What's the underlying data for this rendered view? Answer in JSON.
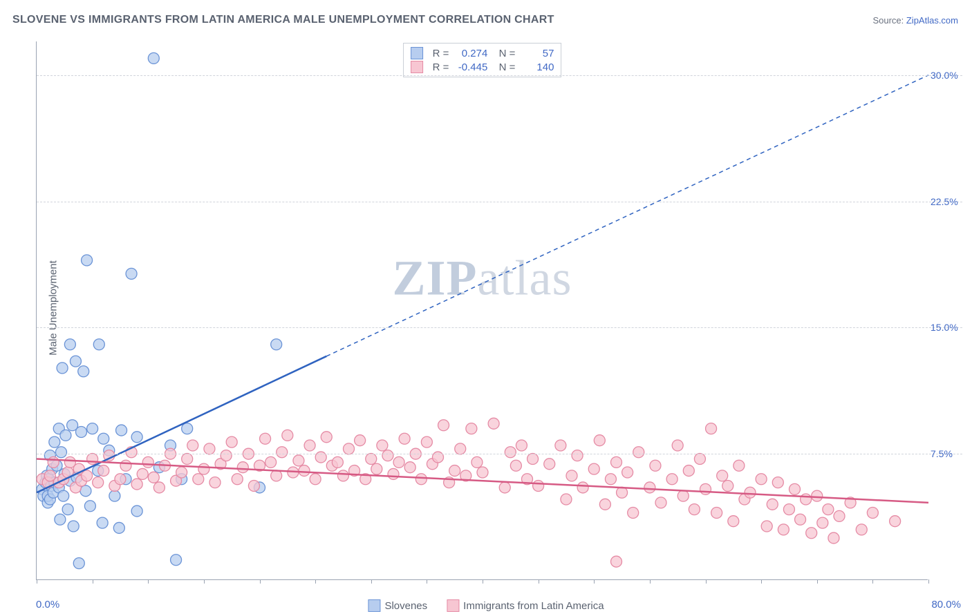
{
  "title": "SLOVENE VS IMMIGRANTS FROM LATIN AMERICA MALE UNEMPLOYMENT CORRELATION CHART",
  "source_prefix": "Source: ",
  "source_link_text": "ZipAtlas.com",
  "ylabel": "Male Unemployment",
  "watermark_bold": "ZIP",
  "watermark_rest": "atlas",
  "chart": {
    "type": "scatter-with-regression",
    "background_color": "#ffffff",
    "grid_color": "#d0d4db",
    "axis_color": "#9aa3b2",
    "label_color": "#5a6270",
    "value_color": "#4169c5",
    "xlim": [
      0,
      80
    ],
    "ylim": [
      0,
      32
    ],
    "x_tick_positions": [
      0,
      5,
      10,
      15,
      20,
      25,
      30,
      35,
      40,
      45,
      50,
      55,
      60,
      65,
      70,
      75,
      80
    ],
    "x_axis_labels": {
      "left": "0.0%",
      "right": "80.0%"
    },
    "y_gridlines": [
      7.5,
      15.0,
      22.5,
      30.0
    ],
    "y_tick_labels": [
      "7.5%",
      "15.0%",
      "22.5%",
      "30.0%"
    ],
    "marker_radius": 8,
    "marker_stroke_width": 1.3,
    "line_width": 2.5,
    "series": [
      {
        "name": "Slovenes",
        "fill": "#b7cdef",
        "stroke": "#6a93d6",
        "line_color": "#2f63c0",
        "R": "0.274",
        "N": "57",
        "regression": {
          "x1": 0,
          "y1": 5.2,
          "x2": 26,
          "y2": 13.3,
          "dash_x2": 80,
          "dash_y2": 30.0
        },
        "points": [
          [
            0.5,
            5.4
          ],
          [
            0.6,
            5.0
          ],
          [
            0.8,
            5.8
          ],
          [
            0.9,
            6.2
          ],
          [
            1.0,
            4.6
          ],
          [
            1.0,
            5.0
          ],
          [
            1.1,
            6.0
          ],
          [
            1.2,
            7.4
          ],
          [
            1.2,
            4.8
          ],
          [
            1.3,
            5.6
          ],
          [
            1.4,
            6.6
          ],
          [
            1.5,
            5.2
          ],
          [
            1.6,
            8.2
          ],
          [
            1.6,
            5.8
          ],
          [
            1.8,
            6.8
          ],
          [
            2.0,
            9.0
          ],
          [
            2.0,
            5.5
          ],
          [
            2.1,
            3.6
          ],
          [
            2.2,
            7.6
          ],
          [
            2.3,
            12.6
          ],
          [
            2.4,
            5.0
          ],
          [
            2.5,
            6.3
          ],
          [
            2.6,
            8.6
          ],
          [
            2.8,
            4.2
          ],
          [
            3.0,
            14.0
          ],
          [
            3.0,
            5.9
          ],
          [
            3.2,
            9.2
          ],
          [
            3.3,
            3.2
          ],
          [
            3.5,
            13.0
          ],
          [
            3.6,
            6.1
          ],
          [
            3.8,
            1.0
          ],
          [
            4.0,
            8.8
          ],
          [
            4.2,
            12.4
          ],
          [
            4.4,
            5.3
          ],
          [
            4.5,
            19.0
          ],
          [
            4.8,
            4.4
          ],
          [
            5.0,
            9.0
          ],
          [
            5.5,
            6.5
          ],
          [
            5.6,
            14.0
          ],
          [
            5.9,
            3.4
          ],
          [
            6.0,
            8.4
          ],
          [
            6.5,
            7.7
          ],
          [
            7.0,
            5.0
          ],
          [
            7.4,
            3.1
          ],
          [
            7.6,
            8.9
          ],
          [
            8.0,
            6.0
          ],
          [
            8.5,
            18.2
          ],
          [
            9.0,
            4.1
          ],
          [
            9.0,
            8.5
          ],
          [
            10.5,
            31.0
          ],
          [
            11.0,
            6.7
          ],
          [
            12.0,
            8.0
          ],
          [
            12.5,
            1.2
          ],
          [
            13.0,
            6.0
          ],
          [
            13.5,
            9.0
          ],
          [
            20.0,
            5.5
          ],
          [
            21.5,
            14.0
          ]
        ]
      },
      {
        "name": "Immigrants from Latin America",
        "fill": "#f7c6d2",
        "stroke": "#e58aa4",
        "line_color": "#d65a84",
        "R": "-0.445",
        "N": "140",
        "regression": {
          "x1": 0,
          "y1": 7.2,
          "x2": 80,
          "y2": 4.6
        },
        "points": [
          [
            0.5,
            6.0
          ],
          [
            1.0,
            5.8
          ],
          [
            1.2,
            6.2
          ],
          [
            1.5,
            7.0
          ],
          [
            2.0,
            5.8
          ],
          [
            2.4,
            6.0
          ],
          [
            2.8,
            6.4
          ],
          [
            3.0,
            7.0
          ],
          [
            3.5,
            5.5
          ],
          [
            3.8,
            6.6
          ],
          [
            4.0,
            5.9
          ],
          [
            4.5,
            6.2
          ],
          [
            5.0,
            7.2
          ],
          [
            5.5,
            5.8
          ],
          [
            6.0,
            6.5
          ],
          [
            6.5,
            7.4
          ],
          [
            7.0,
            5.6
          ],
          [
            7.5,
            6.0
          ],
          [
            8.0,
            6.8
          ],
          [
            8.5,
            7.6
          ],
          [
            9.0,
            5.7
          ],
          [
            9.5,
            6.3
          ],
          [
            10,
            7.0
          ],
          [
            10.5,
            6.1
          ],
          [
            11,
            5.5
          ],
          [
            11.5,
            6.8
          ],
          [
            12,
            7.5
          ],
          [
            12.5,
            5.9
          ],
          [
            13,
            6.4
          ],
          [
            13.5,
            7.2
          ],
          [
            14,
            8.0
          ],
          [
            14.5,
            6.0
          ],
          [
            15,
            6.6
          ],
          [
            15.5,
            7.8
          ],
          [
            16,
            5.8
          ],
          [
            16.5,
            6.9
          ],
          [
            17,
            7.4
          ],
          [
            17.5,
            8.2
          ],
          [
            18,
            6.0
          ],
          [
            18.5,
            6.7
          ],
          [
            19,
            7.5
          ],
          [
            19.5,
            5.6
          ],
          [
            20,
            6.8
          ],
          [
            20.5,
            8.4
          ],
          [
            21,
            7.0
          ],
          [
            21.5,
            6.2
          ],
          [
            22,
            7.6
          ],
          [
            22.5,
            8.6
          ],
          [
            23,
            6.4
          ],
          [
            23.5,
            7.1
          ],
          [
            24,
            6.5
          ],
          [
            24.5,
            8.0
          ],
          [
            25,
            6.0
          ],
          [
            25.5,
            7.3
          ],
          [
            26,
            8.5
          ],
          [
            26.5,
            6.8
          ],
          [
            27,
            7.0
          ],
          [
            27.5,
            6.2
          ],
          [
            28,
            7.8
          ],
          [
            28.5,
            6.5
          ],
          [
            29,
            8.3
          ],
          [
            29.5,
            6.0
          ],
          [
            30,
            7.2
          ],
          [
            30.5,
            6.6
          ],
          [
            31,
            8.0
          ],
          [
            31.5,
            7.4
          ],
          [
            32,
            6.3
          ],
          [
            32.5,
            7.0
          ],
          [
            33,
            8.4
          ],
          [
            33.5,
            6.7
          ],
          [
            34,
            7.5
          ],
          [
            34.5,
            6.0
          ],
          [
            35,
            8.2
          ],
          [
            35.5,
            6.9
          ],
          [
            36,
            7.3
          ],
          [
            36.5,
            9.2
          ],
          [
            37,
            5.8
          ],
          [
            37.5,
            6.5
          ],
          [
            38,
            7.8
          ],
          [
            38.5,
            6.2
          ],
          [
            39,
            9.0
          ],
          [
            39.5,
            7.0
          ],
          [
            40,
            6.4
          ],
          [
            41,
            9.3
          ],
          [
            42,
            5.5
          ],
          [
            42.5,
            7.6
          ],
          [
            43,
            6.8
          ],
          [
            43.5,
            8.0
          ],
          [
            44,
            6.0
          ],
          [
            44.5,
            7.2
          ],
          [
            45,
            5.6
          ],
          [
            46,
            6.9
          ],
          [
            47,
            8.0
          ],
          [
            47.5,
            4.8
          ],
          [
            48,
            6.2
          ],
          [
            48.5,
            7.4
          ],
          [
            49,
            5.5
          ],
          [
            50,
            6.6
          ],
          [
            50.5,
            8.3
          ],
          [
            51,
            4.5
          ],
          [
            51.5,
            6.0
          ],
          [
            52,
            7.0
          ],
          [
            52.5,
            5.2
          ],
          [
            53,
            6.4
          ],
          [
            53.5,
            4.0
          ],
          [
            54,
            7.6
          ],
          [
            55,
            5.5
          ],
          [
            55.5,
            6.8
          ],
          [
            56,
            4.6
          ],
          [
            57,
            6.0
          ],
          [
            57.5,
            8.0
          ],
          [
            58,
            5.0
          ],
          [
            58.5,
            6.5
          ],
          [
            59,
            4.2
          ],
          [
            59.5,
            7.2
          ],
          [
            60,
            5.4
          ],
          [
            60.5,
            9.0
          ],
          [
            61,
            4.0
          ],
          [
            61.5,
            6.2
          ],
          [
            62,
            5.6
          ],
          [
            62.5,
            3.5
          ],
          [
            63,
            6.8
          ],
          [
            63.5,
            4.8
          ],
          [
            64,
            5.2
          ],
          [
            65,
            6.0
          ],
          [
            65.5,
            3.2
          ],
          [
            66,
            4.5
          ],
          [
            66.5,
            5.8
          ],
          [
            67,
            3.0
          ],
          [
            67.5,
            4.2
          ],
          [
            68,
            5.4
          ],
          [
            68.5,
            3.6
          ],
          [
            69,
            4.8
          ],
          [
            69.5,
            2.8
          ],
          [
            70,
            5.0
          ],
          [
            70.5,
            3.4
          ],
          [
            71,
            4.2
          ],
          [
            71.5,
            2.5
          ],
          [
            72,
            3.8
          ],
          [
            73,
            4.6
          ],
          [
            74,
            3.0
          ],
          [
            75,
            4.0
          ],
          [
            77,
            3.5
          ],
          [
            52,
            1.1
          ]
        ]
      }
    ],
    "legend_labels": {
      "slovenes": "Slovenes",
      "immigrants": "Immigrants from Latin America"
    }
  }
}
